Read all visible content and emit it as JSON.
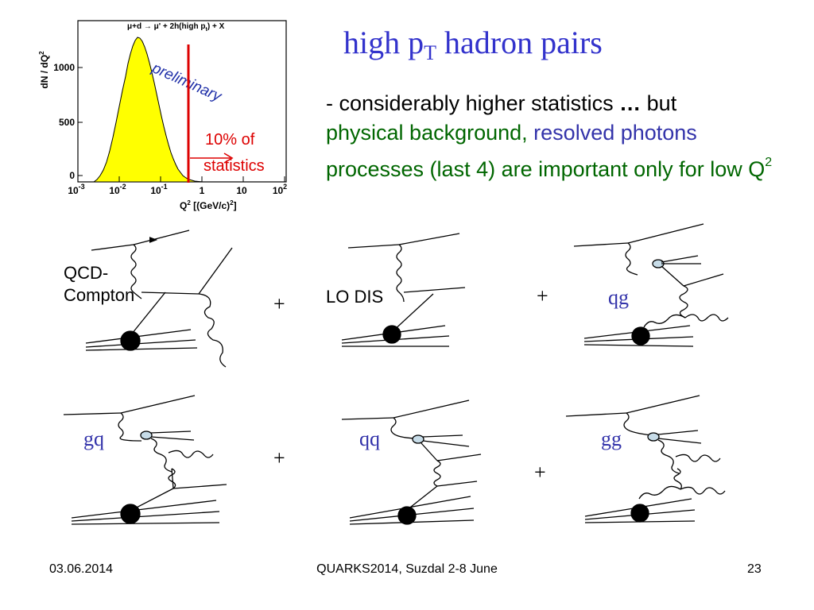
{
  "slide": {
    "title_main": "high p",
    "title_sub": "T",
    "title_rest": " hadron pairs",
    "bullet": {
      "part1": "- considerably higher statistics ",
      "ellipsis": "…",
      "part2": " but",
      "physical": "physical background,",
      "resolved": "resolved photons",
      "part3": "processes (last 4) are important only for low Q",
      "sup": "2"
    }
  },
  "histogram": {
    "reaction": "μ+d → μ' + 2h(high p",
    "reaction_sub": "t",
    "reaction_end": ") + X",
    "ylabel": "dN / dQ",
    "ylabel_sup": "2",
    "xlabel": "Q",
    "xlabel_rest": " [(GeV/c)",
    "xlabel_end": "]",
    "preliminary": "preliminary",
    "cut_label_line1": "10% of",
    "cut_label_line2": "statistics",
    "y_ticks": [
      "0",
      "500",
      "1000"
    ],
    "x_ticks": [
      "10",
      "10",
      "10",
      "1",
      "10",
      "10"
    ],
    "x_tick_exps": [
      "-3",
      "-2",
      "-1",
      "",
      "",
      "2"
    ],
    "fill_color": "#ffff00",
    "cut_color": "#dd0000"
  },
  "diagrams": {
    "qcd_compton_line1": "QCD-",
    "qcd_compton_line2": "Compton",
    "lo_dis": "LO DIS",
    "qg": "qg",
    "gq": "gq",
    "qq": "qq",
    "gg": "gg",
    "plus": "+"
  },
  "footer": {
    "date": "03.06.2014",
    "conference": "QUARKS2014, Suzdal 2-8 June",
    "page": "23"
  }
}
